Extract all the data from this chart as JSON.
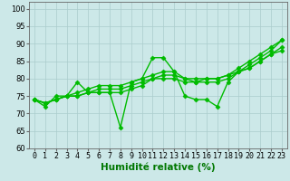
{
  "series": [
    {
      "y": [
        74,
        72,
        75,
        75,
        79,
        76,
        76,
        76,
        66,
        79,
        80,
        86,
        86,
        82,
        75,
        74,
        74,
        72,
        79,
        82,
        84,
        86,
        88,
        91
      ],
      "color": "#00bb00",
      "linewidth": 1.0,
      "marker": "D",
      "markersize": 2.5
    },
    {
      "y": [
        74,
        73,
        74,
        75,
        75,
        76,
        76,
        76,
        76,
        77,
        78,
        80,
        80,
        80,
        79,
        79,
        79,
        79,
        80,
        82,
        83,
        85,
        87,
        88
      ],
      "color": "#00bb00",
      "linewidth": 1.0,
      "marker": "D",
      "markersize": 2.5
    },
    {
      "y": [
        74,
        73,
        74,
        75,
        75,
        76,
        77,
        77,
        77,
        78,
        79,
        80,
        81,
        81,
        80,
        80,
        80,
        80,
        81,
        82,
        83,
        85,
        87,
        89
      ],
      "color": "#00bb00",
      "linewidth": 1.0,
      "marker": "D",
      "markersize": 2.5
    },
    {
      "y": [
        74,
        73,
        74,
        75,
        76,
        77,
        78,
        78,
        78,
        79,
        80,
        81,
        82,
        82,
        80,
        79,
        80,
        80,
        81,
        83,
        85,
        87,
        89,
        91
      ],
      "color": "#00bb00",
      "linewidth": 1.0,
      "marker": "D",
      "markersize": 2.5
    }
  ],
  "x": [
    0,
    1,
    2,
    3,
    4,
    5,
    6,
    7,
    8,
    9,
    10,
    11,
    12,
    13,
    14,
    15,
    16,
    17,
    18,
    19,
    20,
    21,
    22,
    23
  ],
  "xlabel": "Humidité relative (%)",
  "xlim": [
    -0.5,
    23.5
  ],
  "ylim": [
    60,
    102
  ],
  "yticks": [
    60,
    65,
    70,
    75,
    80,
    85,
    90,
    95,
    100
  ],
  "xticks": [
    0,
    1,
    2,
    3,
    4,
    5,
    6,
    7,
    8,
    9,
    10,
    11,
    12,
    13,
    14,
    15,
    16,
    17,
    18,
    19,
    20,
    21,
    22,
    23
  ],
  "background_color": "#cce8e8",
  "grid_color": "#aacccc",
  "line_color": "#007700",
  "xlabel_fontsize": 7.5,
  "tick_fontsize": 6.0
}
